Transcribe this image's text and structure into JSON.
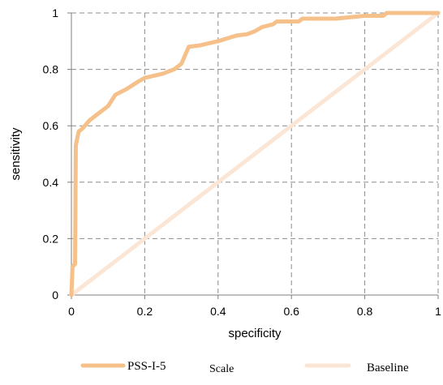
{
  "chart_data": {
    "type": "line",
    "title": "",
    "xlabel": "specificity",
    "ylabel": "sensitivity",
    "xlim": [
      0,
      1
    ],
    "ylim": [
      0,
      1
    ],
    "xticks": [
      "0",
      "0.2",
      "0.4",
      "0.6",
      "0.8",
      "1"
    ],
    "yticks": [
      "0",
      "0.2",
      "0.4",
      "0.6",
      "0.8",
      "1"
    ],
    "grid": true,
    "grid_style": "dashed",
    "legend_position": "bottom",
    "series": [
      {
        "name": "PSS-I-5 Scale",
        "color": "#f5c08a",
        "x": [
          0,
          0.003,
          0.01,
          0.012,
          0.015,
          0.02,
          0.03,
          0.05,
          0.07,
          0.1,
          0.12,
          0.15,
          0.18,
          0.2,
          0.25,
          0.28,
          0.3,
          0.32,
          0.35,
          0.4,
          0.45,
          0.48,
          0.5,
          0.52,
          0.55,
          0.56,
          0.6,
          0.62,
          0.63,
          0.65,
          0.72,
          0.8,
          0.85,
          0.86,
          0.9,
          1.0
        ],
        "y": [
          0,
          0.1,
          0.11,
          0.53,
          0.55,
          0.58,
          0.59,
          0.62,
          0.64,
          0.67,
          0.71,
          0.73,
          0.755,
          0.77,
          0.785,
          0.8,
          0.82,
          0.88,
          0.885,
          0.9,
          0.92,
          0.925,
          0.935,
          0.95,
          0.96,
          0.97,
          0.97,
          0.97,
          0.98,
          0.98,
          0.98,
          0.99,
          0.99,
          1.0,
          1.0,
          1.0
        ]
      },
      {
        "name": "Baseline",
        "color": "#fbe5d5",
        "x": [
          0,
          1
        ],
        "y": [
          0,
          1
        ]
      }
    ],
    "legend": {
      "items": [
        {
          "label_main": "PSS-I-5",
          "label_suffix": "Scale",
          "color": "#f5c08a"
        },
        {
          "label_main": "Baseline",
          "color": "#fbe5d5"
        }
      ]
    }
  }
}
